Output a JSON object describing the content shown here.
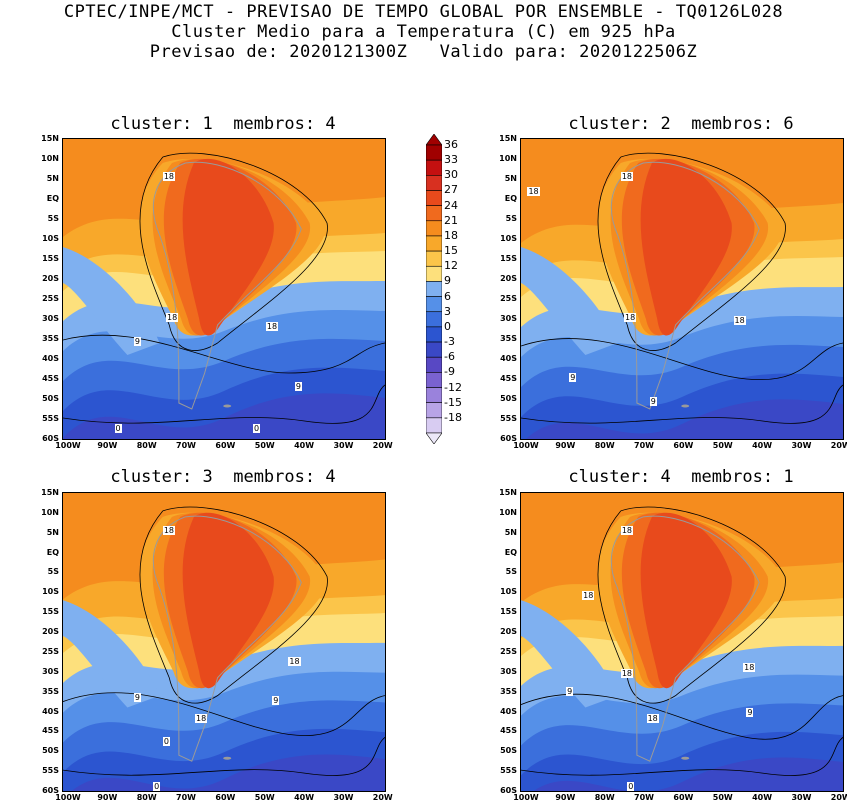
{
  "header": {
    "line1": "CPTEC/INPE/MCT - PREVISAO DE TEMPO GLOBAL POR ENSEMBLE - TQ0126L028",
    "line2": "Cluster Medio para a Temperatura (C) em 925 hPa",
    "line3": "Previsao de: 2020121300Z   Valido para: 2020122506Z"
  },
  "axes": {
    "lat_ticks": [
      "15N",
      "10N",
      "5N",
      "EQ",
      "5S",
      "10S",
      "15S",
      "20S",
      "25S",
      "30S",
      "35S",
      "40S",
      "45S",
      "50S",
      "55S",
      "60S"
    ],
    "lon_ticks": [
      "100W",
      "90W",
      "80W",
      "70W",
      "60W",
      "50W",
      "40W",
      "30W",
      "20W"
    ]
  },
  "colorbar": {
    "labels": [
      "36",
      "33",
      "30",
      "27",
      "24",
      "21",
      "18",
      "15",
      "12",
      "9",
      "6",
      "3",
      "0",
      "-3",
      "-6",
      "-9",
      "-12",
      "-15",
      "-18"
    ],
    "colors": [
      "#a00000",
      "#c41010",
      "#d83020",
      "#e84a1c",
      "#f06a1e",
      "#f58c1e",
      "#f8a82a",
      "#fbc54a",
      "#fde07c",
      "#7fb0f0",
      "#5590e8",
      "#3b6fdc",
      "#2c55d0",
      "#3a48c6",
      "#5848c4",
      "#7a62d0",
      "#9a82dc",
      "#b8a4e6",
      "#d8ccf2"
    ]
  },
  "panels": [
    {
      "title": "cluster: 1  membros: 4",
      "labels": [
        "18",
        "18",
        "18",
        "9",
        "9",
        "0",
        "0"
      ]
    },
    {
      "title": "cluster: 2  membros: 6",
      "labels": [
        "18",
        "18",
        "18",
        "18",
        "9",
        "9"
      ]
    },
    {
      "title": "cluster: 3  membros: 4",
      "labels": [
        "18",
        "18",
        "18",
        "9",
        "9",
        "0",
        "0"
      ]
    },
    {
      "title": "cluster: 4  membros: 1",
      "labels": [
        "18",
        "18",
        "18",
        "18",
        "18",
        "9",
        "9",
        "0"
      ]
    }
  ]
}
